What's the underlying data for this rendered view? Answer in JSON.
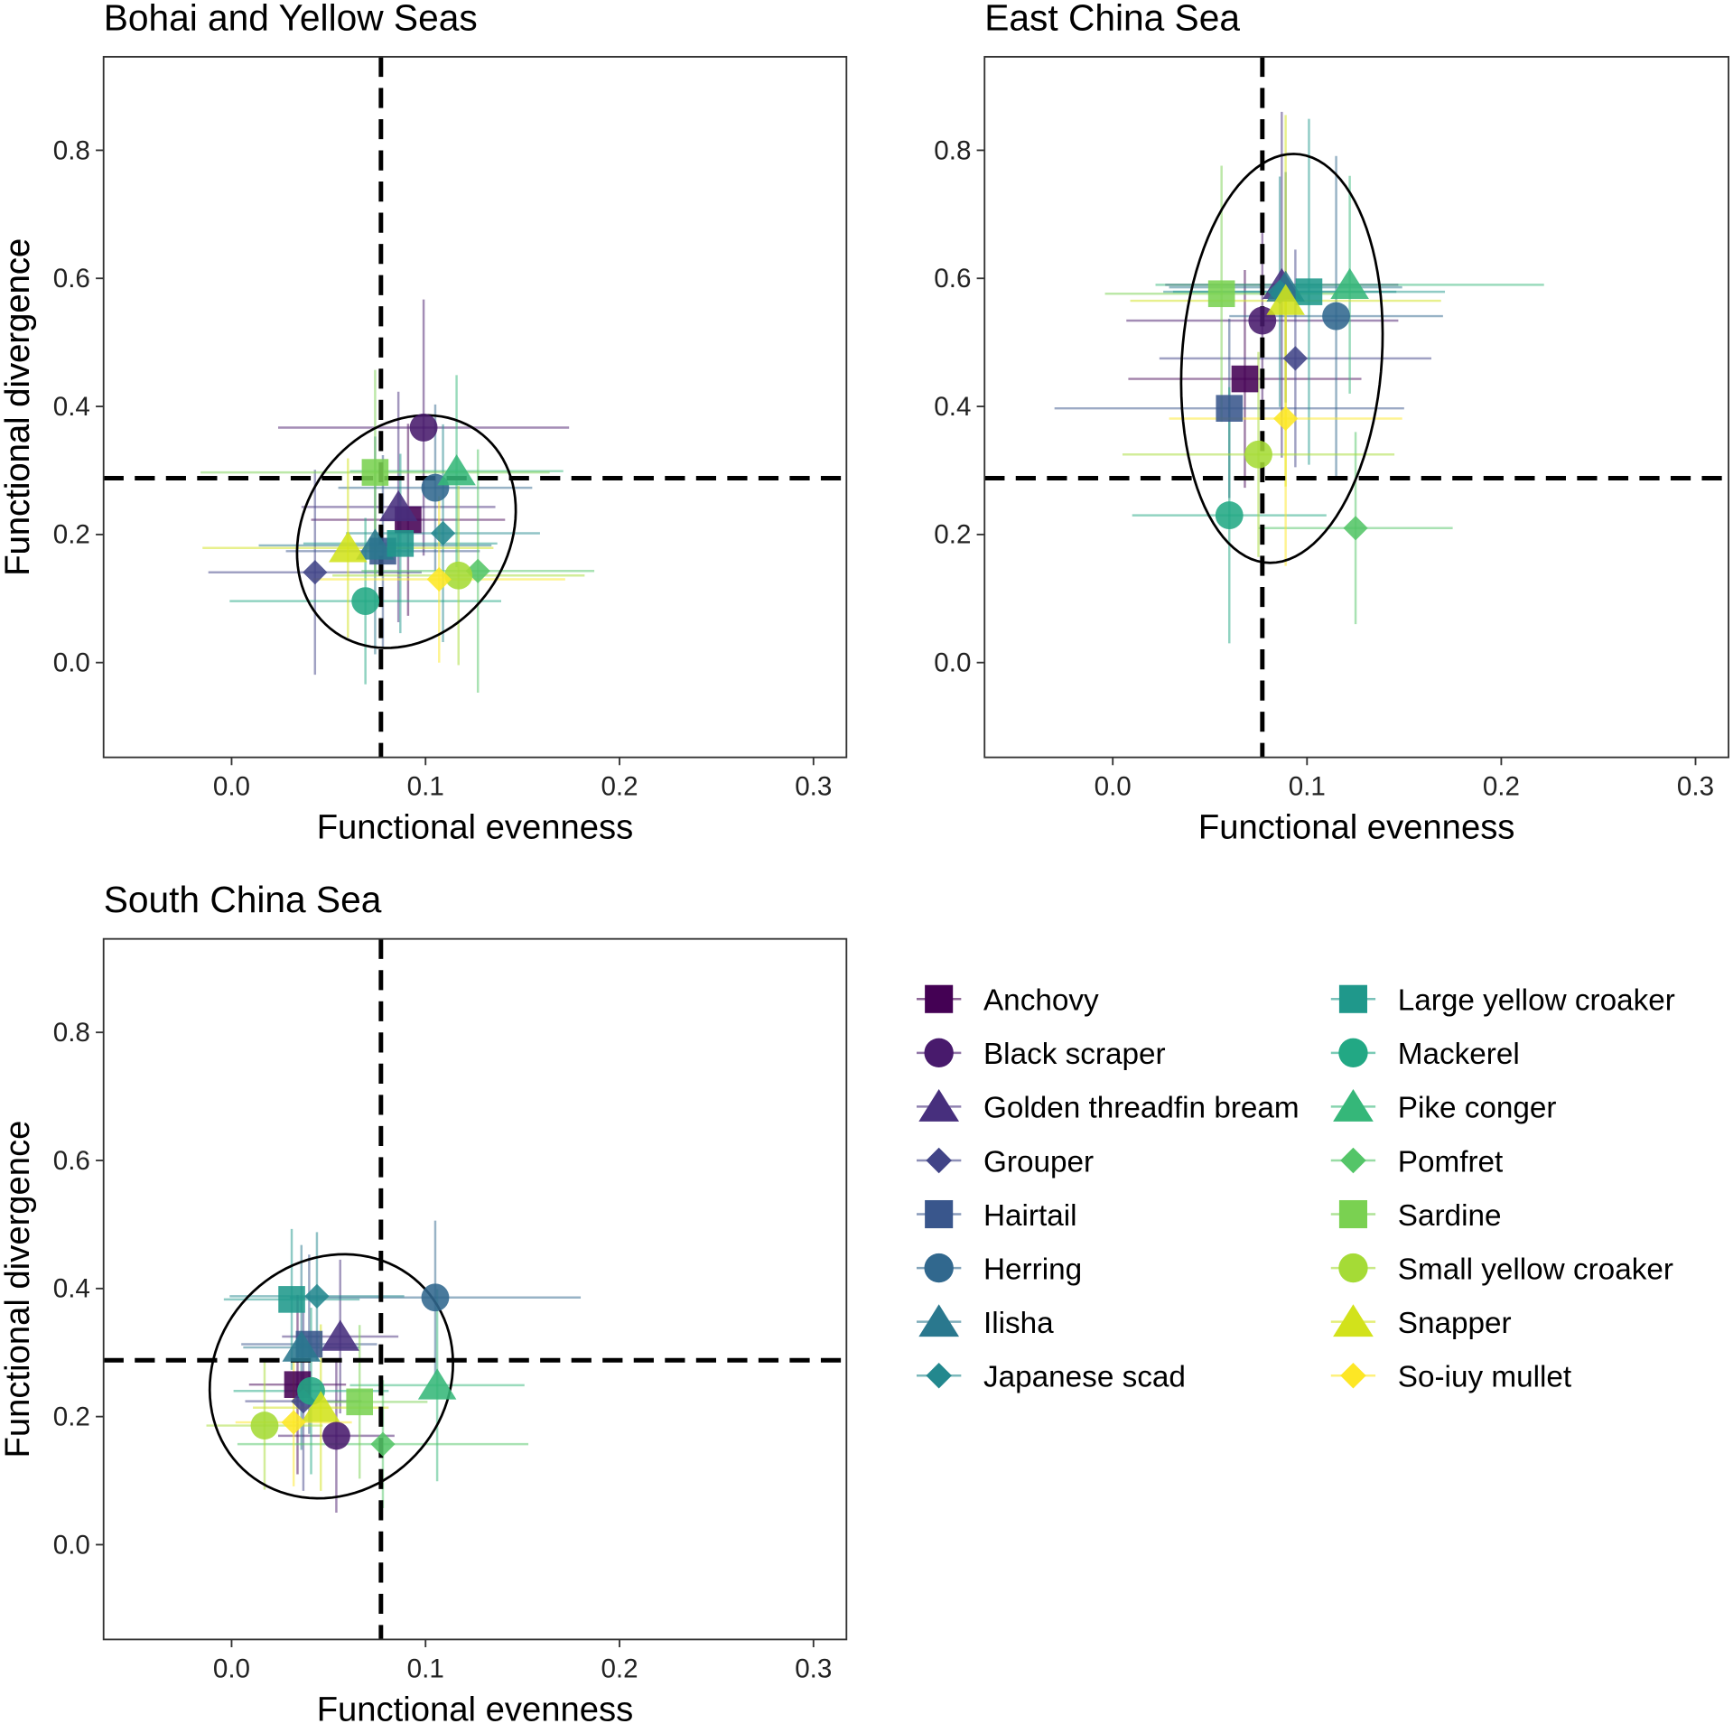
{
  "species": [
    {
      "name": "Anchovy",
      "color": "#440154",
      "shape": "square"
    },
    {
      "name": "Black scraper",
      "color": "#481a6c",
      "shape": "circle"
    },
    {
      "name": "Golden threadfin bream",
      "color": "#472f7d",
      "shape": "triangle"
    },
    {
      "name": "Grouper",
      "color": "#414487",
      "shape": "diamond"
    },
    {
      "name": "Hairtail",
      "color": "#39568c",
      "shape": "square"
    },
    {
      "name": "Herring",
      "color": "#31688e",
      "shape": "circle"
    },
    {
      "name": "Ilisha",
      "color": "#2a788e",
      "shape": "triangle"
    },
    {
      "name": "Japanese scad",
      "color": "#23888e",
      "shape": "diamond"
    },
    {
      "name": "Large yellow croaker",
      "color": "#1f988b",
      "shape": "square"
    },
    {
      "name": "Mackerel",
      "color": "#22a884",
      "shape": "circle"
    },
    {
      "name": "Pike conger",
      "color": "#35b779",
      "shape": "triangle"
    },
    {
      "name": "Pomfret",
      "color": "#54c568",
      "shape": "diamond"
    },
    {
      "name": "Sardine",
      "color": "#7ad151",
      "shape": "square"
    },
    {
      "name": "Small yellow croaker",
      "color": "#a5db36",
      "shape": "circle"
    },
    {
      "name": "Snapper",
      "color": "#d2e21b",
      "shape": "triangle"
    },
    {
      "name": "So-iuy mullet",
      "color": "#fde725",
      "shape": "diamond"
    }
  ],
  "chart_data": [
    {
      "type": "scatter",
      "title": "Bohai and Yellow Seas",
      "xlabel": "Functional evenness",
      "ylabel": "Functional divergence",
      "xlim": [
        -0.066,
        0.317
      ],
      "ylim": [
        -0.148,
        0.946
      ],
      "xticks": [
        {
          "value": 0,
          "label": "0.0"
        },
        0.1,
        0.2,
        0.3
      ],
      "yticks": [
        {
          "value": 0,
          "label": "0.0"
        },
        0.2,
        0.4,
        0.6,
        0.8
      ],
      "vline": 0.077,
      "hline": 0.288,
      "x": [
        0.091,
        0.099,
        0.086,
        0.043,
        0.078,
        0.105,
        0.074,
        0.109,
        0.087,
        0.069,
        0.116,
        0.127,
        0.074,
        0.117,
        0.06,
        0.107
      ],
      "y": [
        0.223,
        0.367,
        0.243,
        0.141,
        0.174,
        0.273,
        0.183,
        0.202,
        0.186,
        0.096,
        0.299,
        0.143,
        0.297,
        0.136,
        0.179,
        0.13
      ],
      "xerr": [
        0.05,
        0.075,
        0.05,
        0.055,
        0.05,
        0.05,
        0.06,
        0.05,
        0.05,
        0.07,
        0.055,
        0.06,
        0.09,
        0.065,
        0.075,
        0.065
      ],
      "yerr": [
        0.15,
        0.2,
        0.18,
        0.16,
        0.15,
        0.13,
        0.17,
        0.17,
        0.14,
        0.13,
        0.15,
        0.19,
        0.16,
        0.14,
        0.14,
        0.13
      ]
    },
    {
      "type": "scatter",
      "title": "East China Sea",
      "xlabel": "Functional evenness",
      "ylabel": "Functional divergence",
      "xlim": [
        -0.066,
        0.317
      ],
      "ylim": [
        -0.148,
        0.946
      ],
      "xticks": [
        {
          "value": 0,
          "label": "0.0"
        },
        0.1,
        0.2,
        0.3
      ],
      "yticks": [
        {
          "value": 0,
          "label": "0.0"
        },
        0.2,
        0.4,
        0.6,
        0.8
      ],
      "vline": 0.077,
      "hline": 0.288,
      "x": [
        0.068,
        0.077,
        0.087,
        0.094,
        0.06,
        0.115,
        0.089,
        0.086,
        0.101,
        0.06,
        0.122,
        0.125,
        0.056,
        0.075,
        0.089,
        0.089
      ],
      "y": [
        0.443,
        0.534,
        0.59,
        0.475,
        0.397,
        0.541,
        0.586,
        0.579,
        0.579,
        0.23,
        0.59,
        0.21,
        0.576,
        0.325,
        0.565,
        0.381
      ],
      "xerr": [
        0.06,
        0.07,
        0.06,
        0.07,
        0.09,
        0.055,
        0.06,
        0.06,
        0.07,
        0.05,
        0.1,
        0.05,
        0.06,
        0.07,
        0.08,
        0.06
      ],
      "yerr": [
        0.17,
        0.14,
        0.27,
        0.17,
        0.14,
        0.25,
        0.18,
        0.18,
        0.27,
        0.2,
        0.17,
        0.15,
        0.2,
        0.16,
        0.29,
        0.23
      ]
    },
    {
      "type": "scatter",
      "title": "South China Sea",
      "xlabel": "Functional evenness",
      "ylabel": "Functional divergence",
      "xlim": [
        -0.066,
        0.317
      ],
      "ylim": [
        -0.148,
        0.946
      ],
      "xticks": [
        {
          "value": 0,
          "label": "0.0"
        },
        0.1,
        0.2,
        0.3
      ],
      "yticks": [
        {
          "value": 0,
          "label": "0.0"
        },
        0.2,
        0.4,
        0.6,
        0.8
      ],
      "vline": 0.077,
      "hline": 0.288,
      "x": [
        0.034,
        0.054,
        0.056,
        0.037,
        0.04,
        0.105,
        0.036,
        0.044,
        0.031,
        0.041,
        0.106,
        0.078,
        0.066,
        0.017,
        0.046,
        0.032
      ],
      "y": [
        0.25,
        0.17,
        0.325,
        0.224,
        0.313,
        0.386,
        0.308,
        0.388,
        0.383,
        0.24,
        0.249,
        0.157,
        0.223,
        0.186,
        0.214,
        0.191
      ],
      "xerr": [
        0.025,
        0.03,
        0.03,
        0.03,
        0.035,
        0.075,
        0.03,
        0.045,
        0.035,
        0.04,
        0.045,
        0.075,
        0.035,
        0.03,
        0.035,
        0.03
      ],
      "yerr": [
        0.14,
        0.12,
        0.12,
        0.14,
        0.14,
        0.12,
        0.16,
        0.1,
        0.11,
        0.13,
        0.15,
        0.1,
        0.12,
        0.1,
        0.13,
        0.1
      ]
    }
  ]
}
